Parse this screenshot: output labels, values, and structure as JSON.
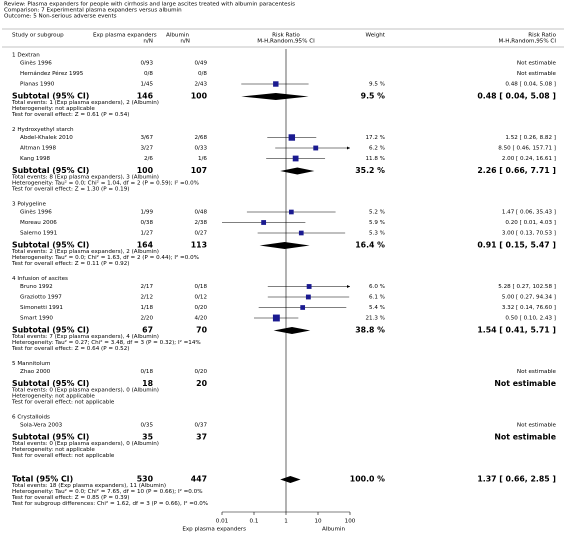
{
  "chart_data": {
    "type": "forest",
    "header": [
      "Review:  Plasma expanders for people with cirrhosis and large ascites treated with albumin paracentesis",
      "Comparison:  7 Experimental plasma expanders versus albumin",
      "Outcome:  5 Non-serious adverse events"
    ],
    "columns": {
      "study": "Study or subgroup",
      "exp": "Exp plasma expanders",
      "exp_unit": "n/N",
      "alb": "Albumin",
      "alb_unit": "n/N",
      "plot": "Risk Ratio",
      "plot_method": "M-H,Random,95% CI",
      "weight": "Weight",
      "result": "Risk Ratio",
      "result_method": "M-H,Random,95% CI"
    },
    "groups": [
      {
        "name": "1 Dextran",
        "studies": [
          {
            "name": "Ginès 1996",
            "exp": "0/93",
            "alb": "0/49",
            "result": "Not estimable"
          },
          {
            "name": "Hernández Pérez 1995",
            "exp": "0/8",
            "alb": "0/8",
            "result": "Not estimable"
          },
          {
            "name": "Planas 1990",
            "exp": "1/45",
            "alb": "2/43",
            "weight": {
              "value": 9.5,
              "label": "9.5 %"
            },
            "rr": {
              "value": 0.48,
              "label": "0.48 [ 0.04, 5.08 ]"
            },
            "ci": [
              0.04,
              5.08
            ]
          }
        ],
        "subtotal": {
          "name": "Subtotal (95% CI)",
          "exp": 146,
          "alb": 100,
          "weight": {
            "value": 9.5,
            "label": "9.5 %"
          },
          "rr": {
            "value": 0.48,
            "label": "0.48 [ 0.04, 5.08 ]"
          },
          "ci": [
            0.04,
            5.08
          ]
        },
        "notes": [
          "Total events: 1 (Exp plasma expanders), 2 (Albumin)",
          "Heterogeneity: not applicable",
          "Test for overall effect: Z = 0.61 (P = 0.54)"
        ]
      },
      {
        "name": "2 Hydroxyethyl starch",
        "studies": [
          {
            "name": "Abdel-Khalek 2010",
            "exp": "3/67",
            "alb": "2/68",
            "weight": {
              "value": 17.2,
              "label": "17.2 %"
            },
            "rr": {
              "value": 1.52,
              "label": "1.52 [ 0.26, 8.82 ]"
            },
            "ci": [
              0.26,
              8.82
            ]
          },
          {
            "name": "Altman 1998",
            "exp": "3/27",
            "alb": "0/33",
            "weight": {
              "value": 6.2,
              "label": "6.2 %"
            },
            "rr": {
              "value": 8.5,
              "label": "8.50 [ 0.46, 157.71 ]"
            },
            "ci": [
              0.46,
              157.71
            ]
          },
          {
            "name": "Kang 1998",
            "exp": "2/6",
            "alb": "1/6",
            "weight": {
              "value": 11.8,
              "label": "11.8 %"
            },
            "rr": {
              "value": 2.0,
              "label": "2.00 [ 0.24, 16.61 ]"
            },
            "ci": [
              0.24,
              16.61
            ]
          }
        ],
        "subtotal": {
          "name": "Subtotal (95% CI)",
          "exp": 100,
          "alb": 107,
          "weight": {
            "value": 35.2,
            "label": "35.2 %"
          },
          "rr": {
            "value": 2.26,
            "label": "2.26 [ 0.66, 7.71 ]"
          },
          "ci": [
            0.66,
            7.71
          ]
        },
        "notes": [
          "Total events: 8 (Exp plasma expanders), 3 (Albumin)",
          "Heterogeneity: Tau² = 0.0; Chi² = 1.04, df = 2 (P = 0.59); I² =0.0%",
          "Test for overall effect: Z = 1.30 (P = 0.19)"
        ]
      },
      {
        "name": "3 Polygeline",
        "studies": [
          {
            "name": "Ginès 1996",
            "exp": "1/99",
            "alb": "0/48",
            "weight": {
              "value": 5.2,
              "label": "5.2 %"
            },
            "rr": {
              "value": 1.47,
              "label": "1.47 [ 0.06, 35.43 ]"
            },
            "ci": [
              0.06,
              35.43
            ]
          },
          {
            "name": "Moreau 2006",
            "exp": "0/38",
            "alb": "2/38",
            "weight": {
              "value": 5.9,
              "label": "5.9 %"
            },
            "rr": {
              "value": 0.2,
              "label": "0.20 [ 0.01, 4.03 ]"
            },
            "ci": [
              0.01,
              4.03
            ]
          },
          {
            "name": "Salerno 1991",
            "exp": "1/27",
            "alb": "0/27",
            "weight": {
              "value": 5.3,
              "label": "5.3 %"
            },
            "rr": {
              "value": 3.0,
              "label": "3.00 [ 0.13, 70.53 ]"
            },
            "ci": [
              0.13,
              70.53
            ]
          }
        ],
        "subtotal": {
          "name": "Subtotal (95% CI)",
          "exp": 164,
          "alb": 113,
          "weight": {
            "value": 16.4,
            "label": "16.4 %"
          },
          "rr": {
            "value": 0.91,
            "label": "0.91 [ 0.15, 5.47 ]"
          },
          "ci": [
            0.15,
            5.47
          ]
        },
        "notes": [
          "Total events: 2 (Exp plasma expanders), 2 (Albumin)",
          "Heterogeneity: Tau² = 0.0; Chi² = 1.63, df = 2 (P = 0.44); I² =0.0%",
          "Test for overall effect: Z = 0.11 (P = 0.92)"
        ]
      },
      {
        "name": "4 Infusion of ascites",
        "studies": [
          {
            "name": "Bruno 1992",
            "exp": "2/17",
            "alb": "0/18",
            "weight": {
              "value": 6.0,
              "label": "6.0 %"
            },
            "rr": {
              "value": 5.28,
              "label": "5.28 [ 0.27, 102.58 ]"
            },
            "ci": [
              0.27,
              102.58
            ]
          },
          {
            "name": "Graziotto 1997",
            "exp": "2/12",
            "alb": "0/12",
            "weight": {
              "value": 6.1,
              "label": "6.1 %"
            },
            "rr": {
              "value": 5.0,
              "label": "5.00 [ 0.27, 94.34 ]"
            },
            "ci": [
              0.27,
              94.34
            ]
          },
          {
            "name": "Simonetti 1991",
            "exp": "1/18",
            "alb": "0/20",
            "weight": {
              "value": 5.4,
              "label": "5.4 %"
            },
            "rr": {
              "value": 3.32,
              "label": "3.32 [ 0.14, 76.60 ]"
            },
            "ci": [
              0.14,
              76.6
            ]
          },
          {
            "name": "Smart 1990",
            "exp": "2/20",
            "alb": "4/20",
            "weight": {
              "value": 21.3,
              "label": "21.3 %"
            },
            "rr": {
              "value": 0.5,
              "label": "0.50 [ 0.10, 2.43 ]"
            },
            "ci": [
              0.1,
              2.43
            ]
          }
        ],
        "subtotal": {
          "name": "Subtotal (95% CI)",
          "exp": 67,
          "alb": 70,
          "weight": {
            "value": 38.8,
            "label": "38.8 %"
          },
          "rr": {
            "value": 1.54,
            "label": "1.54 [ 0.41, 5.71 ]"
          },
          "ci": [
            0.41,
            5.71
          ]
        },
        "notes": [
          "Total events: 7 (Exp plasma expanders), 4 (Albumin)",
          "Heterogeneity: Tau² = 0.27; Chi² = 3.48, df = 3 (P = 0.32); I² =14%",
          "Test for overall effect: Z = 0.64 (P = 0.52)"
        ]
      },
      {
        "name": "5 Mannitolum",
        "studies": [
          {
            "name": "Zhao 2000",
            "exp": "0/18",
            "alb": "0/20",
            "result": "Not estimable"
          }
        ],
        "subtotal": {
          "name": "Subtotal (95% CI)",
          "exp": 18,
          "alb": 20,
          "result": "Not estimable"
        },
        "notes": [
          "Total events: 0 (Exp plasma expanders), 0 (Albumin)",
          "Heterogeneity: not applicable",
          "Test for overall effect: not applicable"
        ]
      },
      {
        "name": "6 Crystalloids",
        "studies": [
          {
            "name": "Sola-Vera 2003",
            "exp": "0/35",
            "alb": "0/37",
            "result": "Not estimable"
          }
        ],
        "subtotal": {
          "name": "Subtotal (95% CI)",
          "exp": 35,
          "alb": 37,
          "result": "Not estimable"
        },
        "notes": [
          "Total events: 0 (Exp plasma expanders), 0 (Albumin)",
          "Heterogeneity: not applicable",
          "Test for overall effect: not applicable"
        ]
      }
    ],
    "total": {
      "name": "Total (95% CI)",
      "exp": 530,
      "alb": 447,
      "weight": {
        "value": 100.0,
        "label": "100.0 %"
      },
      "rr": {
        "value": 1.37,
        "label": "1.37 [ 0.66, 2.85 ]"
      },
      "ci": [
        0.66,
        2.85
      ],
      "notes": [
        "Total events: 18 (Exp plasma expanders), 11 (Albumin)",
        "Heterogeneity: Tau² = 0.0; Chi² = 7.65, df = 10 (P = 0.66); I² =0.0%",
        "Test for overall effect: Z = 0.85 (P = 0.39)",
        "Test for subgroup differences: Chi² = 1.62, df = 3 (P = 0.66), I² =0.0%"
      ]
    },
    "xlim": [
      0.01,
      100
    ],
    "xticks": [
      0.01,
      0.1,
      1,
      10,
      100
    ],
    "log": true,
    "xlabel_left": "Exp plasma expanders",
    "xlabel_right": "Albumin",
    "color": "#1a1a90"
  }
}
